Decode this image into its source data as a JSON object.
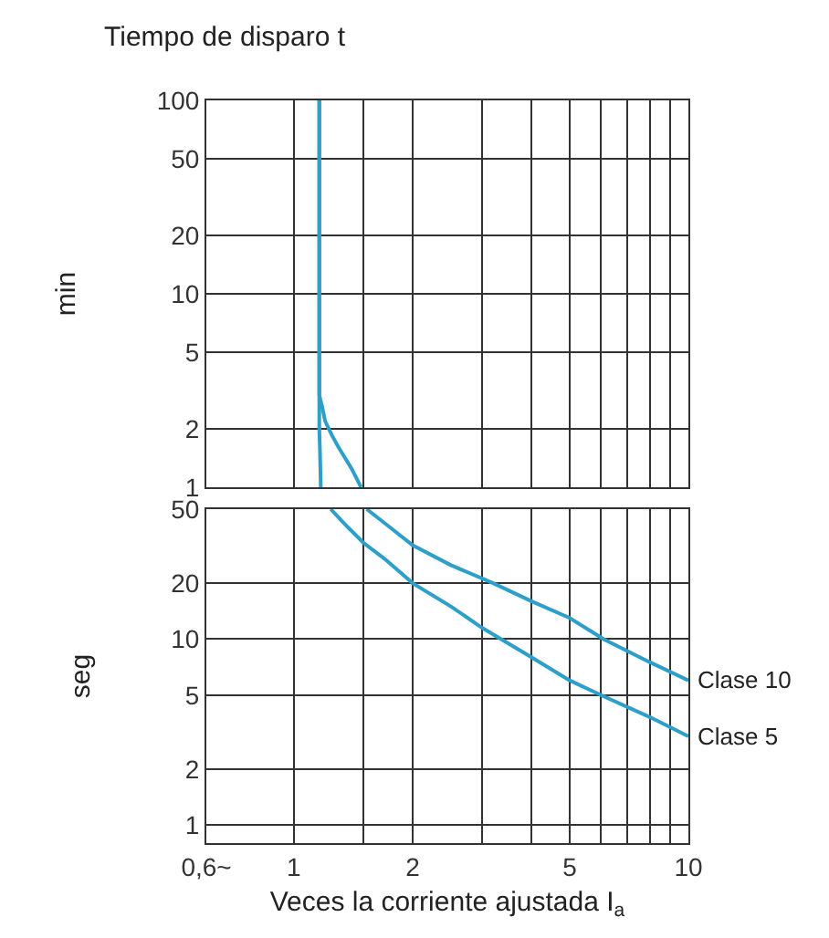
{
  "chart_data": [
    {
      "type": "line",
      "title": "Tiempo de disparo t",
      "ylabel": "min",
      "log": "xy",
      "grid": true,
      "tick_labels": "y",
      "marker": "none",
      "line_style": "solid",
      "xlim": [
        0.6,
        10
      ],
      "xticks": [
        {
          "value": 1,
          "label": null
        },
        {
          "value": 1.5,
          "label": null
        },
        {
          "value": 2,
          "label": null
        },
        {
          "value": 3,
          "label": null
        },
        {
          "value": 4,
          "label": null
        },
        {
          "value": 5,
          "label": null
        },
        {
          "value": 6,
          "label": null
        },
        {
          "value": 7,
          "label": null
        },
        {
          "value": 8,
          "label": null
        },
        {
          "value": 9,
          "label": null
        },
        {
          "value": 10,
          "label": null
        }
      ],
      "ylim": [
        1,
        100
      ],
      "yticks": [
        1,
        2,
        5,
        10,
        20,
        50,
        100
      ],
      "series": [
        {
          "color": "#2e9fc8",
          "x": [
            1.16,
            1.16,
            1.18,
            1.2,
            1.25,
            1.3,
            1.4,
            1.48
          ],
          "values": [
            100,
            3,
            2.6,
            2.2,
            1.85,
            1.6,
            1.25,
            1
          ]
        },
        {
          "color": "#2e9fc8",
          "x": [
            1.16,
            1.16,
            1.165,
            1.17
          ],
          "values": [
            100,
            2,
            1.5,
            1
          ]
        }
      ]
    },
    {
      "type": "line",
      "xlabel": "Veces la corriente ajustada I$_{a}$",
      "ylabel": "seg",
      "log": "xy",
      "grid": true,
      "marker": "none",
      "line_style": "solid",
      "xlim": [
        0.6,
        10
      ],
      "xticks": [
        {
          "value": 0.6,
          "label": "0,6~"
        },
        1,
        {
          "value": 1.5,
          "label": null
        },
        2,
        {
          "value": 3,
          "label": null
        },
        {
          "value": 4,
          "label": null
        },
        5,
        {
          "value": 6,
          "label": null
        },
        {
          "value": 7,
          "label": null
        },
        {
          "value": 8,
          "label": null
        },
        {
          "value": 9,
          "label": null
        },
        10
      ],
      "ylim": [
        0.8,
        50
      ],
      "yticks": [
        1,
        2,
        5,
        10,
        20,
        50
      ],
      "series": [
        {
          "name": "Clase 10",
          "color": "#2e9fc8",
          "x": [
            1.53,
            1.75,
            2,
            2.5,
            3.2,
            4,
            5,
            6.1,
            8,
            10
          ],
          "values": [
            50,
            40,
            32,
            25,
            20,
            16,
            13,
            10,
            7.5,
            6
          ]
        },
        {
          "name": "Clase 5",
          "color": "#2e9fc8",
          "x": [
            1.24,
            1.37,
            1.5,
            1.7,
            2,
            2.5,
            3,
            4,
            5,
            6,
            8,
            10
          ],
          "values": [
            50,
            40,
            33,
            27,
            20,
            15,
            11.5,
            8,
            6,
            5,
            3.8,
            3
          ]
        }
      ]
    }
  ]
}
